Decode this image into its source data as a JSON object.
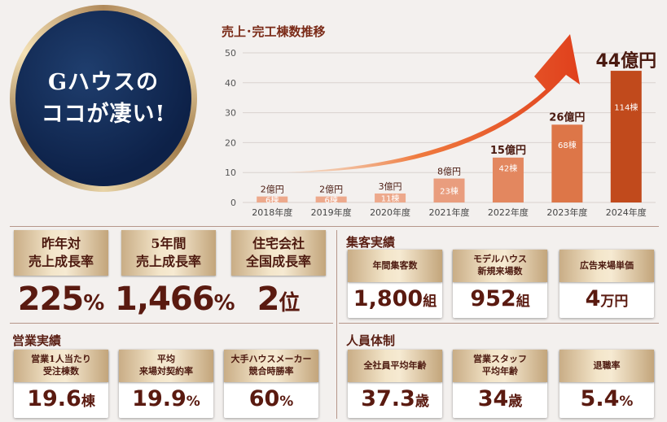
{
  "badge": {
    "line1": "Gハウスの",
    "line2": "ココが凄い!"
  },
  "chart_data": {
    "type": "bar",
    "title": "売上･完工棟数推移",
    "categories": [
      "2018年度",
      "2019年度",
      "2020年度",
      "2021年度",
      "2022年度",
      "2023年度",
      "2024年度"
    ],
    "values": [
      2,
      2,
      3,
      8,
      15,
      26,
      44
    ],
    "value_labels": [
      "2億円",
      "2億円",
      "3億円",
      "8億円",
      "15億円",
      "26億円",
      "44億円"
    ],
    "unit_counts": [
      "6棟",
      "6棟",
      "11棟",
      "23棟",
      "42棟",
      "68棟",
      "114棟"
    ],
    "yticks": [
      0,
      10,
      20,
      30,
      40,
      50
    ],
    "ylim": [
      0,
      50
    ],
    "colors": [
      "#eda98c",
      "#eda98c",
      "#eda98c",
      "#e99d7e",
      "#e3875f",
      "#dd7648",
      "#c14a1c"
    ]
  },
  "growth": [
    {
      "title": "昨年対\n売上成長率",
      "value": "225",
      "unit": "%"
    },
    {
      "title": "5年間\n売上成長率",
      "value": "1,466",
      "unit": "%"
    },
    {
      "title": "住宅会社\n全国成長率",
      "value": "2",
      "unit": "位"
    }
  ],
  "sections": {
    "attract": "集客実績",
    "sales": "営業実績",
    "staff": "人員体制"
  },
  "attract": [
    {
      "title": "年間集客数",
      "value": "1,800",
      "unit": "組"
    },
    {
      "title": "モデルハウス\n新規来場数",
      "value": "952",
      "unit": "組"
    },
    {
      "title": "広告来場単価",
      "value": "4",
      "unit": "万円"
    }
  ],
  "sales": [
    {
      "title": "営業1人当たり\n受注棟数",
      "value": "19.6",
      "unit": "棟"
    },
    {
      "title": "平均\n来場対契約率",
      "value": "19.9",
      "unit": "%"
    },
    {
      "title": "大手ハウスメーカー\n競合時勝率",
      "value": "60",
      "unit": "%"
    }
  ],
  "staff": [
    {
      "title": "全社員平均年齢",
      "value": "37.3",
      "unit": "歳"
    },
    {
      "title": "営業スタッフ\n平均年齢",
      "value": "34",
      "unit": "歳"
    },
    {
      "title": "退職率",
      "value": "5.4",
      "unit": "%"
    }
  ]
}
